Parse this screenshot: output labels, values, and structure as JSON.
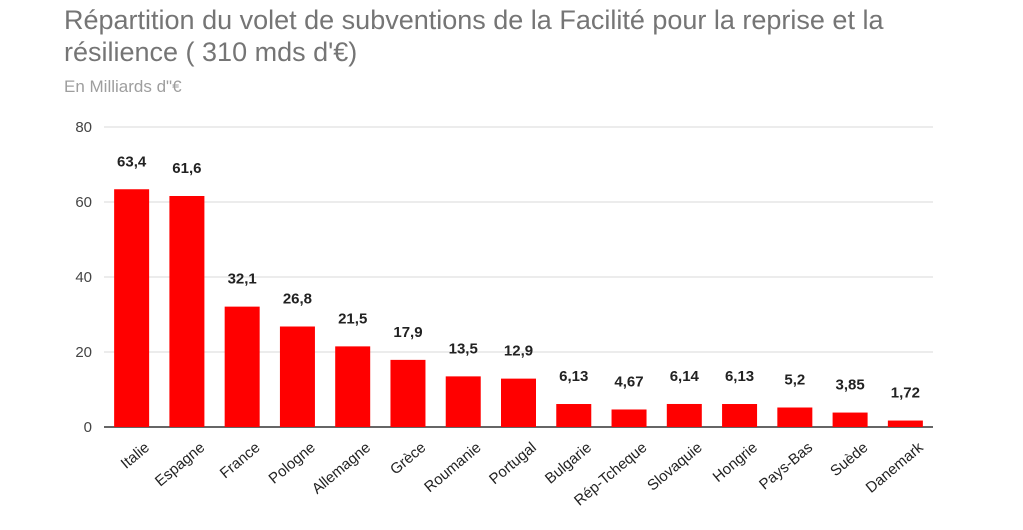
{
  "chart_data": {
    "type": "bar",
    "title": "Répartition du volet de subventions de la Facilité pour la reprise et la résilience ( 310 mds d'€)",
    "subtitle": "En Milliards d\"€",
    "xlabel": "",
    "ylabel": "",
    "ylim": [
      0,
      80
    ],
    "yticks": [
      "0",
      "20",
      "40",
      "60",
      "80"
    ],
    "grid": true,
    "bar_color": "#ff0000",
    "categories": [
      "Italie",
      "Espagne",
      "France",
      "Pologne",
      "Allemagne",
      "Grèce",
      "Roumanie",
      "Portugal",
      "Bulgarie",
      "Rép-Tcheque",
      "Slovaquie",
      "Hongrie",
      "Pays-Bas",
      "Suède",
      "Danemark"
    ],
    "values": [
      63.4,
      61.6,
      32.1,
      26.8,
      21.5,
      17.9,
      13.5,
      12.9,
      6.13,
      4.67,
      6.14,
      6.13,
      5.2,
      3.85,
      1.72
    ],
    "data_labels": [
      "63,4",
      "61,6",
      "32,1",
      "26,8",
      "21,5",
      "17,9",
      "13,5",
      "12,9",
      "6,13",
      "4,67",
      "6,14",
      "6,13",
      "5,2",
      "3,85",
      "1,72"
    ]
  }
}
